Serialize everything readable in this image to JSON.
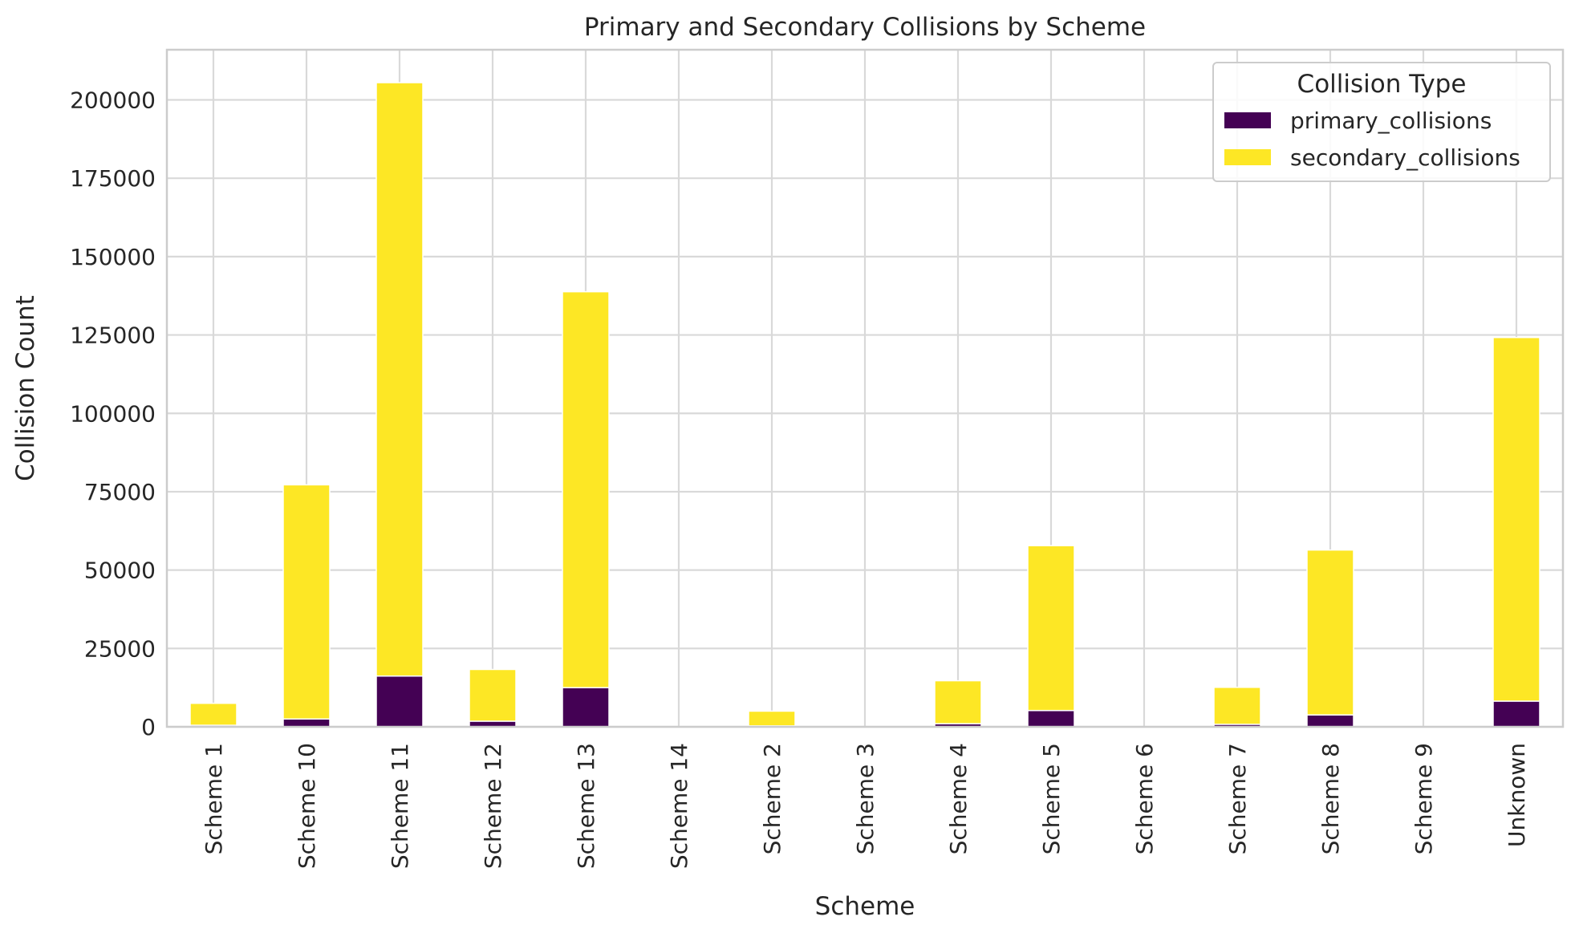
{
  "chart_data": {
    "type": "bar",
    "stacked": true,
    "title": "Primary and Secondary Collisions by Scheme",
    "xlabel": "Scheme",
    "ylabel": "Collision Count",
    "categories": [
      "Scheme 1",
      "Scheme 10",
      "Scheme 11",
      "Scheme 12",
      "Scheme 13",
      "Scheme 14",
      "Scheme 2",
      "Scheme 3",
      "Scheme 4",
      "Scheme 5",
      "Scheme 6",
      "Scheme 7",
      "Scheme 8",
      "Scheme 9",
      "Unknown"
    ],
    "series": [
      {
        "name": "primary_collisions",
        "color": "#440154",
        "values": [
          500,
          2500,
          16200,
          1800,
          12500,
          0,
          300,
          0,
          1000,
          5200,
          0,
          800,
          3800,
          0,
          8200
        ]
      },
      {
        "name": "secondary_collisions",
        "color": "#fde725",
        "values": [
          7000,
          74700,
          189300,
          16500,
          126300,
          0,
          4700,
          0,
          13700,
          52600,
          0,
          11800,
          52600,
          0,
          116000
        ]
      }
    ],
    "ylim": [
      0,
      216000
    ],
    "yticks": [
      0,
      25000,
      50000,
      75000,
      100000,
      125000,
      150000,
      175000,
      200000
    ],
    "grid": true,
    "legend": {
      "title": "Collision Type",
      "position": "top-right"
    }
  }
}
